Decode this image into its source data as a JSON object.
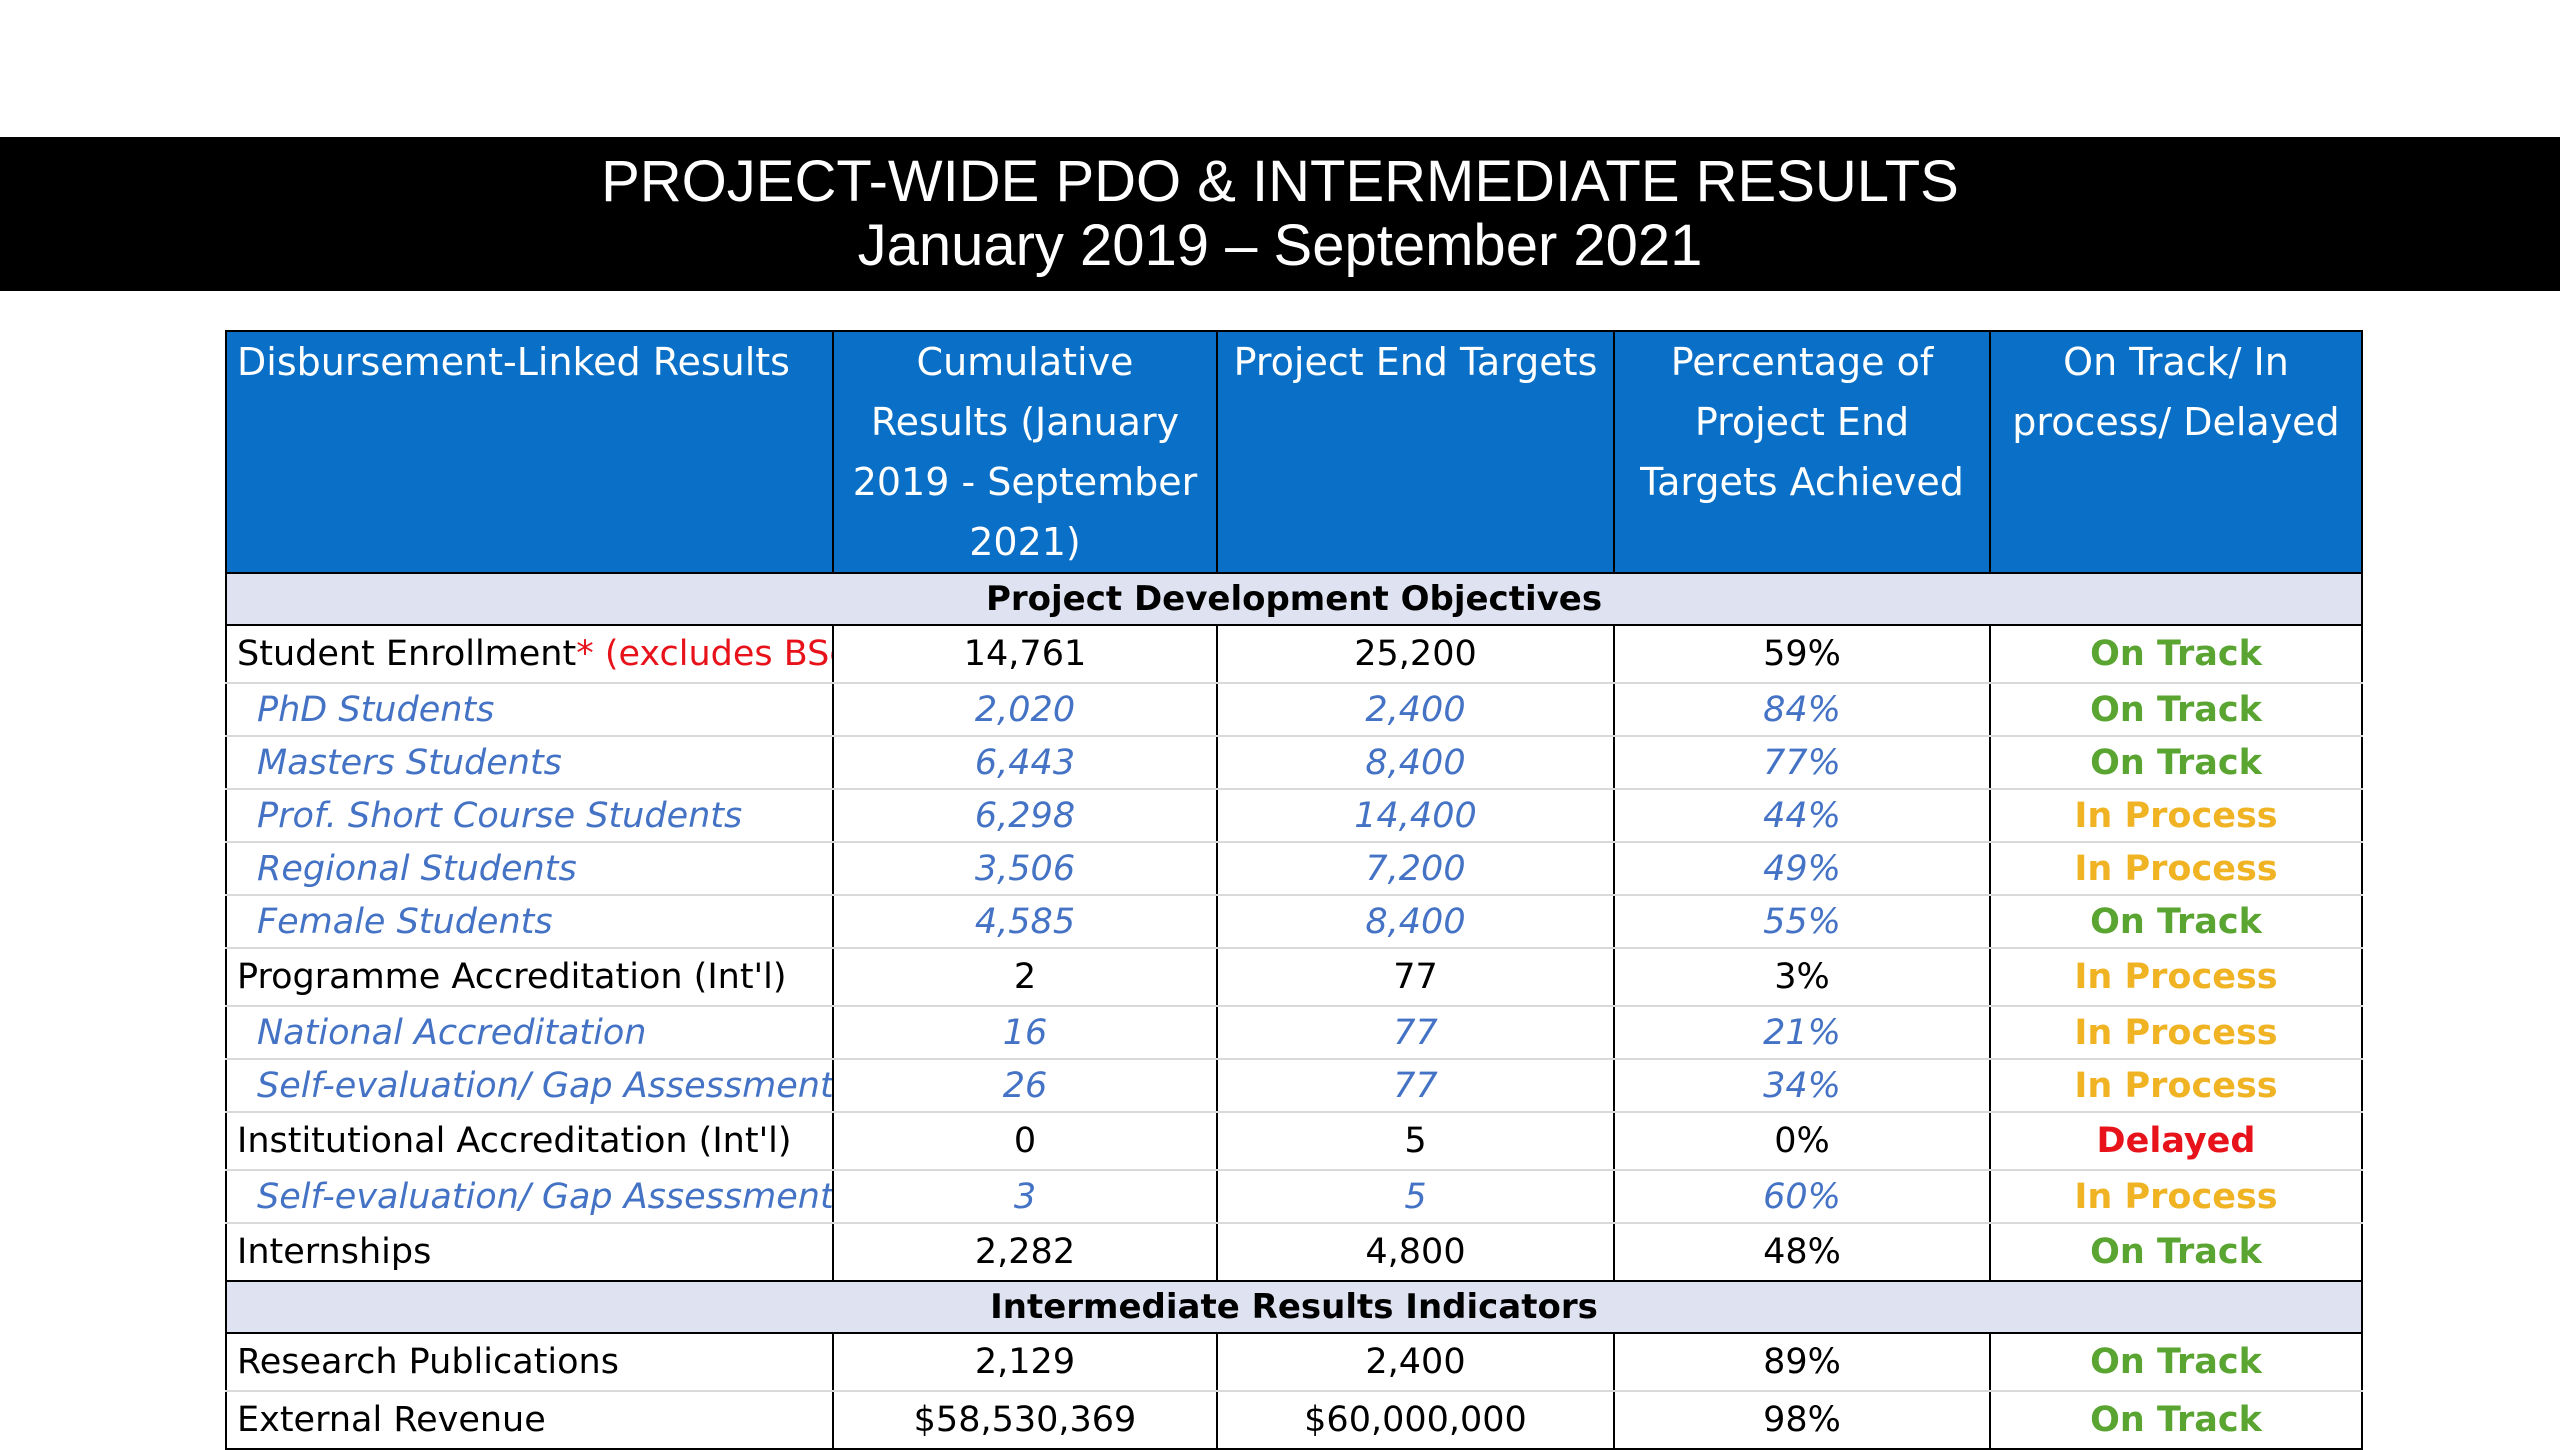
{
  "title": {
    "line1": "PROJECT-WIDE PDO & INTERMEDIATE RESULTS",
    "line2": "January 2019 – September 2021"
  },
  "table": {
    "headers": [
      "Disbursement-Linked Results",
      "Cumulative Results (January 2019 - September  2021)",
      "Project End Targets",
      "Percentage of Project End Targets Achieved",
      "On Track/ In process/ Delayed"
    ],
    "sections": [
      {
        "title": "Project Development Objectives",
        "rows": [
          {
            "label": "Student Enrollment",
            "note": "* (excludes BSc)",
            "cumulative": "14,761",
            "target": "25,200",
            "percent": "59%",
            "status": "On Track",
            "sub": false
          },
          {
            "label": "PhD Students",
            "cumulative": "2,020",
            "target": "2,400",
            "percent": "84%",
            "status": "On Track",
            "sub": true
          },
          {
            "label": "Masters Students",
            "cumulative": "6,443",
            "target": "8,400",
            "percent": "77%",
            "status": "On Track",
            "sub": true
          },
          {
            "label": "Prof. Short Course Students",
            "cumulative": "6,298",
            "target": "14,400",
            "percent": "44%",
            "status": "In Process",
            "sub": true
          },
          {
            "label": "Regional Students",
            "cumulative": "3,506",
            "target": "7,200",
            "percent": "49%",
            "status": "In Process",
            "sub": true
          },
          {
            "label": "Female Students",
            "cumulative": "4,585",
            "target": "8,400",
            "percent": "55%",
            "status": "On Track",
            "sub": true
          },
          {
            "label": "Programme Accreditation (Int'l)",
            "cumulative": "2",
            "target": "77",
            "percent": "3%",
            "status": "In Process",
            "sub": false
          },
          {
            "label": "National Accreditation",
            "cumulative": "16",
            "target": "77",
            "percent": "21%",
            "status": "In Process",
            "sub": true
          },
          {
            "label": "Self-evaluation/ Gap Assessment",
            "cumulative": "26",
            "target": "77",
            "percent": "34%",
            "status": "In Process",
            "sub": true
          },
          {
            "label": "Institutional Accreditation (Int'l)",
            "cumulative": "0",
            "target": "5",
            "percent": "0%",
            "status": "Delayed",
            "sub": false
          },
          {
            "label": "Self-evaluation/ Gap Assessment",
            "cumulative": "3",
            "target": "5",
            "percent": "60%",
            "status": "In Process",
            "sub": true
          },
          {
            "label": "Internships",
            "cumulative": "2,282",
            "target": "4,800",
            "percent": "48%",
            "status": "On Track",
            "sub": false
          }
        ]
      },
      {
        "title": "Intermediate Results Indicators",
        "rows": [
          {
            "label": "Research Publications",
            "cumulative": "2,129",
            "target": "2,400",
            "percent": "89%",
            "status": "On Track",
            "sub": false
          },
          {
            "label": "External Revenue",
            "cumulative": "$58,530,369",
            "target": "$60,000,000",
            "percent": "98%",
            "status": "On Track",
            "sub": false
          }
        ]
      }
    ]
  },
  "colors": {
    "header_bg": "#0a6fc6",
    "section_bg": "#dfe3f1",
    "on_track": "#5aa532",
    "in_process": "#f0b323",
    "delayed": "#e8121b",
    "sub_row_text": "#4472c4"
  }
}
